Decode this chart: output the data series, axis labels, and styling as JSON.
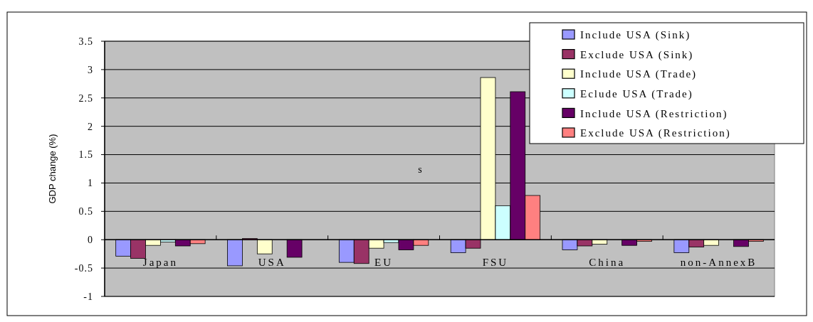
{
  "chart_data": {
    "type": "bar",
    "ylabel": "GDP change (%)",
    "categories": [
      "Japan",
      "USA",
      "EU",
      "FSU",
      "China",
      "non-AnnexB"
    ],
    "series": [
      {
        "name": "Include USA (Sink)",
        "color": "#9999ff",
        "values": [
          -0.29,
          -0.46,
          -0.4,
          -0.23,
          -0.18,
          -0.23
        ]
      },
      {
        "name": "Exclude USA (Sink)",
        "color": "#993366",
        "values": [
          -0.33,
          0.02,
          -0.42,
          -0.15,
          -0.11,
          -0.13
        ]
      },
      {
        "name": "Include USA (Trade)",
        "color": "#ffffcc",
        "values": [
          -0.1,
          -0.25,
          -0.15,
          2.86,
          -0.08,
          -0.1
        ]
      },
      {
        "name": "Eclude USA (Trade)",
        "color": "#ccffff",
        "values": [
          -0.04,
          null,
          -0.05,
          0.6,
          null,
          null
        ]
      },
      {
        "name": "Include USA (Restriction)",
        "color": "#660066",
        "values": [
          -0.11,
          -0.31,
          -0.18,
          2.61,
          -0.1,
          -0.12
        ]
      },
      {
        "name": "Exclude USA (Restriction)",
        "color": "#ff8080",
        "values": [
          -0.07,
          null,
          -0.1,
          0.78,
          -0.03,
          -0.03
        ]
      }
    ],
    "ylim": [
      -1,
      3.5
    ],
    "yticks": [
      -1,
      -0.5,
      0,
      0.5,
      1,
      1.5,
      2,
      2.5,
      3,
      3.5
    ],
    "grid": "y",
    "legend": "top right",
    "annotations": [
      "s"
    ]
  }
}
